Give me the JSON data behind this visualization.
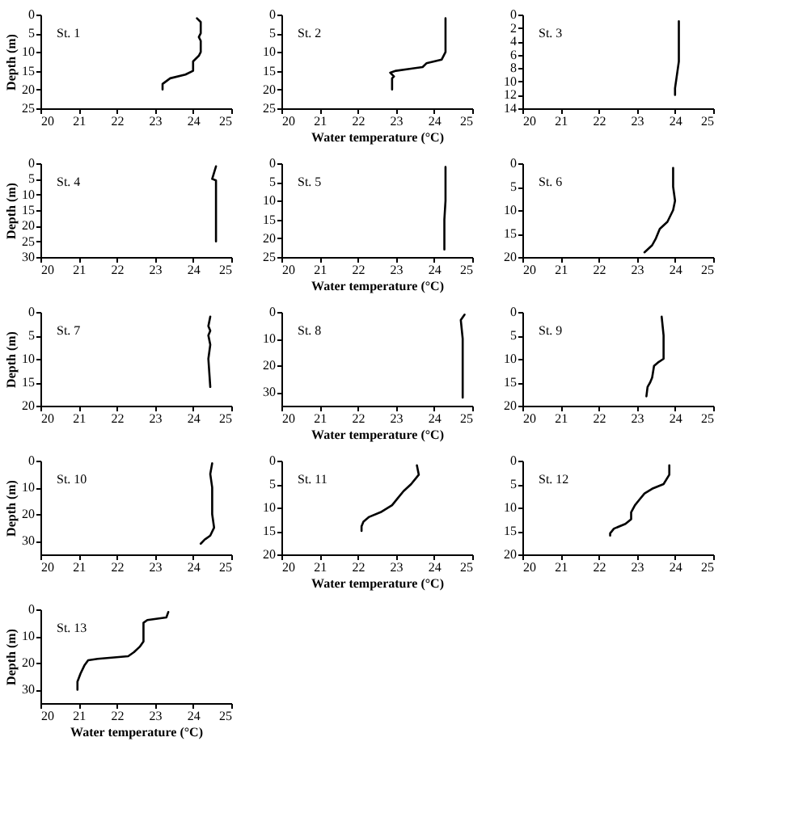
{
  "chart_data": [
    {
      "type": "line",
      "annotations": [
        "St. 1"
      ],
      "ylabel": "Depth (m)",
      "xlim": [
        20,
        25
      ],
      "xticks": [
        20,
        21,
        22,
        23,
        24,
        25
      ],
      "ylim": [
        25,
        0
      ],
      "yticks": [
        0,
        5,
        10,
        15,
        20,
        25
      ],
      "grid": false,
      "series": [
        {
          "color": "#000000",
          "x": [
            24.1,
            24.2,
            24.2,
            24.15,
            24.2,
            24.2,
            24.15,
            24.0,
            24.0,
            23.8,
            23.4,
            23.2,
            23.2
          ],
          "values": [
            1,
            2,
            5,
            6,
            7,
            10,
            11,
            12.5,
            15,
            16,
            17,
            18.5,
            20
          ]
        }
      ]
    },
    {
      "type": "line",
      "annotations": [
        "St. 2"
      ],
      "xlabel": "Water temperature (°C)",
      "xlim": [
        20,
        25
      ],
      "xticks": [
        20,
        21,
        22,
        23,
        24,
        25
      ],
      "ylim": [
        25,
        0
      ],
      "yticks": [
        0,
        5,
        10,
        15,
        20,
        25
      ],
      "grid": false,
      "series": [
        {
          "color": "#000000",
          "x": [
            24.3,
            24.3,
            24.2,
            23.8,
            23.7,
            23.0,
            22.85,
            22.95,
            22.9,
            22.9
          ],
          "values": [
            1,
            10,
            12,
            13,
            14,
            15,
            15.5,
            16.5,
            17,
            20
          ]
        }
      ]
    },
    {
      "type": "line",
      "annotations": [
        "St. 3"
      ],
      "xlim": [
        20,
        25
      ],
      "xticks": [
        20,
        21,
        22,
        23,
        24,
        25
      ],
      "ylim": [
        14,
        0
      ],
      "yticks": [
        0,
        2,
        4,
        6,
        8,
        10,
        12,
        14
      ],
      "grid": false,
      "series": [
        {
          "color": "#000000",
          "x": [
            24.1,
            24.1,
            24.05,
            24.0,
            24.0
          ],
          "values": [
            1,
            7,
            9,
            11,
            12
          ]
        }
      ]
    },
    {
      "type": "line",
      "annotations": [
        "St. 4"
      ],
      "ylabel": "Depth (m)",
      "xlim": [
        20,
        25
      ],
      "xticks": [
        20,
        21,
        22,
        23,
        24,
        25
      ],
      "ylim": [
        30,
        0
      ],
      "yticks": [
        0,
        5,
        10,
        15,
        20,
        25,
        30
      ],
      "grid": false,
      "series": [
        {
          "color": "#000000",
          "x": [
            24.6,
            24.55,
            24.5,
            24.6,
            24.6,
            24.6
          ],
          "values": [
            1,
            3,
            5,
            5.5,
            8,
            25
          ]
        }
      ]
    },
    {
      "type": "line",
      "annotations": [
        "St. 5"
      ],
      "xlabel": "Water temperature (°C)",
      "xlim": [
        20,
        25
      ],
      "xticks": [
        20,
        21,
        22,
        23,
        24,
        25
      ],
      "ylim": [
        25,
        0
      ],
      "yticks": [
        0,
        5,
        10,
        15,
        20,
        25
      ],
      "grid": false,
      "series": [
        {
          "color": "#000000",
          "x": [
            24.3,
            24.3,
            24.27,
            24.27
          ],
          "values": [
            1,
            10,
            15,
            23
          ]
        }
      ]
    },
    {
      "type": "line",
      "annotations": [
        "St. 6"
      ],
      "xlim": [
        20,
        25
      ],
      "xticks": [
        20,
        21,
        22,
        23,
        24,
        25
      ],
      "ylim": [
        20,
        0
      ],
      "yticks": [
        0,
        5,
        10,
        15,
        20
      ],
      "grid": false,
      "series": [
        {
          "color": "#000000",
          "x": [
            23.95,
            23.95,
            24.0,
            23.95,
            23.8,
            23.6,
            23.5,
            23.4,
            23.2
          ],
          "values": [
            1,
            5,
            8,
            10,
            12.5,
            14,
            16,
            17.5,
            19
          ]
        }
      ]
    },
    {
      "type": "line",
      "annotations": [
        "St. 7"
      ],
      "ylabel": "Depth (m)",
      "xlim": [
        20,
        25
      ],
      "xticks": [
        20,
        21,
        22,
        23,
        24,
        25
      ],
      "ylim": [
        20,
        0
      ],
      "yticks": [
        0,
        5,
        10,
        15,
        20
      ],
      "grid": false,
      "series": [
        {
          "color": "#000000",
          "x": [
            24.45,
            24.4,
            24.45,
            24.4,
            24.45,
            24.4,
            24.45
          ],
          "values": [
            1,
            3,
            4,
            5,
            7,
            10,
            16
          ]
        }
      ]
    },
    {
      "type": "line",
      "annotations": [
        "St. 8"
      ],
      "xlabel": "Water temperature (°C)",
      "xlim": [
        20,
        25
      ],
      "xticks": [
        20,
        21,
        22,
        23,
        24,
        25
      ],
      "ylim": [
        35,
        0
      ],
      "yticks": [
        0,
        10,
        20,
        30
      ],
      "grid": false,
      "series": [
        {
          "color": "#000000",
          "x": [
            24.8,
            24.7,
            24.75,
            24.75,
            24.75
          ],
          "values": [
            1,
            3,
            10,
            20,
            32
          ]
        }
      ]
    },
    {
      "type": "line",
      "annotations": [
        "St. 9"
      ],
      "xlim": [
        20,
        25
      ],
      "xticks": [
        20,
        21,
        22,
        23,
        24,
        25
      ],
      "ylim": [
        20,
        0
      ],
      "yticks": [
        0,
        5,
        10,
        15,
        20
      ],
      "grid": false,
      "series": [
        {
          "color": "#000000",
          "x": [
            23.65,
            23.7,
            23.7,
            23.55,
            23.45,
            23.4,
            23.35,
            23.28,
            23.25
          ],
          "values": [
            1,
            5,
            10,
            10.8,
            11.5,
            14,
            15,
            16,
            18
          ]
        }
      ]
    },
    {
      "type": "line",
      "annotations": [
        "St. 10"
      ],
      "ylabel": "Depth (m)",
      "xlim": [
        20,
        25
      ],
      "xticks": [
        20,
        21,
        22,
        23,
        24,
        25
      ],
      "ylim": [
        35,
        0
      ],
      "yticks": [
        0,
        10,
        20,
        30
      ],
      "grid": false,
      "series": [
        {
          "color": "#000000",
          "x": [
            24.5,
            24.45,
            24.5,
            24.5,
            24.55,
            24.45,
            24.3,
            24.2
          ],
          "values": [
            1,
            5,
            10,
            20,
            25,
            28,
            29.5,
            31
          ]
        }
      ]
    },
    {
      "type": "line",
      "annotations": [
        "St. 11"
      ],
      "xlabel": "Water temperature (°C)",
      "xlim": [
        20,
        25
      ],
      "xticks": [
        20,
        21,
        22,
        23,
        24,
        25
      ],
      "ylim": [
        20,
        0
      ],
      "yticks": [
        0,
        5,
        10,
        15,
        20
      ],
      "grid": false,
      "series": [
        {
          "color": "#000000",
          "x": [
            23.55,
            23.6,
            23.4,
            23.2,
            23.05,
            22.9,
            22.6,
            22.3,
            22.15,
            22.1,
            22.1
          ],
          "values": [
            1,
            3,
            5,
            6.5,
            8,
            9.5,
            11,
            12,
            13,
            14,
            15
          ]
        }
      ]
    },
    {
      "type": "line",
      "annotations": [
        "St. 12"
      ],
      "xlim": [
        20,
        25
      ],
      "xticks": [
        20,
        21,
        22,
        23,
        24,
        25
      ],
      "ylim": [
        20,
        0
      ],
      "yticks": [
        0,
        5,
        10,
        15,
        20
      ],
      "grid": false,
      "series": [
        {
          "color": "#000000",
          "x": [
            23.85,
            23.85,
            23.7,
            23.4,
            23.2,
            23.05,
            22.95,
            22.85,
            22.85,
            22.7,
            22.4,
            22.3,
            22.3
          ],
          "values": [
            1,
            3,
            5,
            6,
            7,
            8.5,
            9.5,
            11,
            12.5,
            13.5,
            14.5,
            15.5,
            16
          ]
        }
      ]
    },
    {
      "type": "line",
      "annotations": [
        "St. 13"
      ],
      "xlabel": "Water temperature (°C)",
      "ylabel": "Depth (m)",
      "xlim": [
        20,
        25
      ],
      "xticks": [
        20,
        21,
        22,
        23,
        24,
        25
      ],
      "ylim": [
        35,
        0
      ],
      "yticks": [
        0,
        10,
        20,
        30
      ],
      "grid": false,
      "series": [
        {
          "color": "#000000",
          "x": [
            23.35,
            23.3,
            22.8,
            22.7,
            22.7,
            22.6,
            22.45,
            22.3,
            21.5,
            21.25,
            21.15,
            21.05,
            20.97,
            20.97
          ],
          "values": [
            1,
            3,
            4,
            5,
            12,
            14,
            16,
            17.5,
            18.5,
            19,
            21,
            24,
            27,
            30
          ]
        }
      ]
    }
  ]
}
